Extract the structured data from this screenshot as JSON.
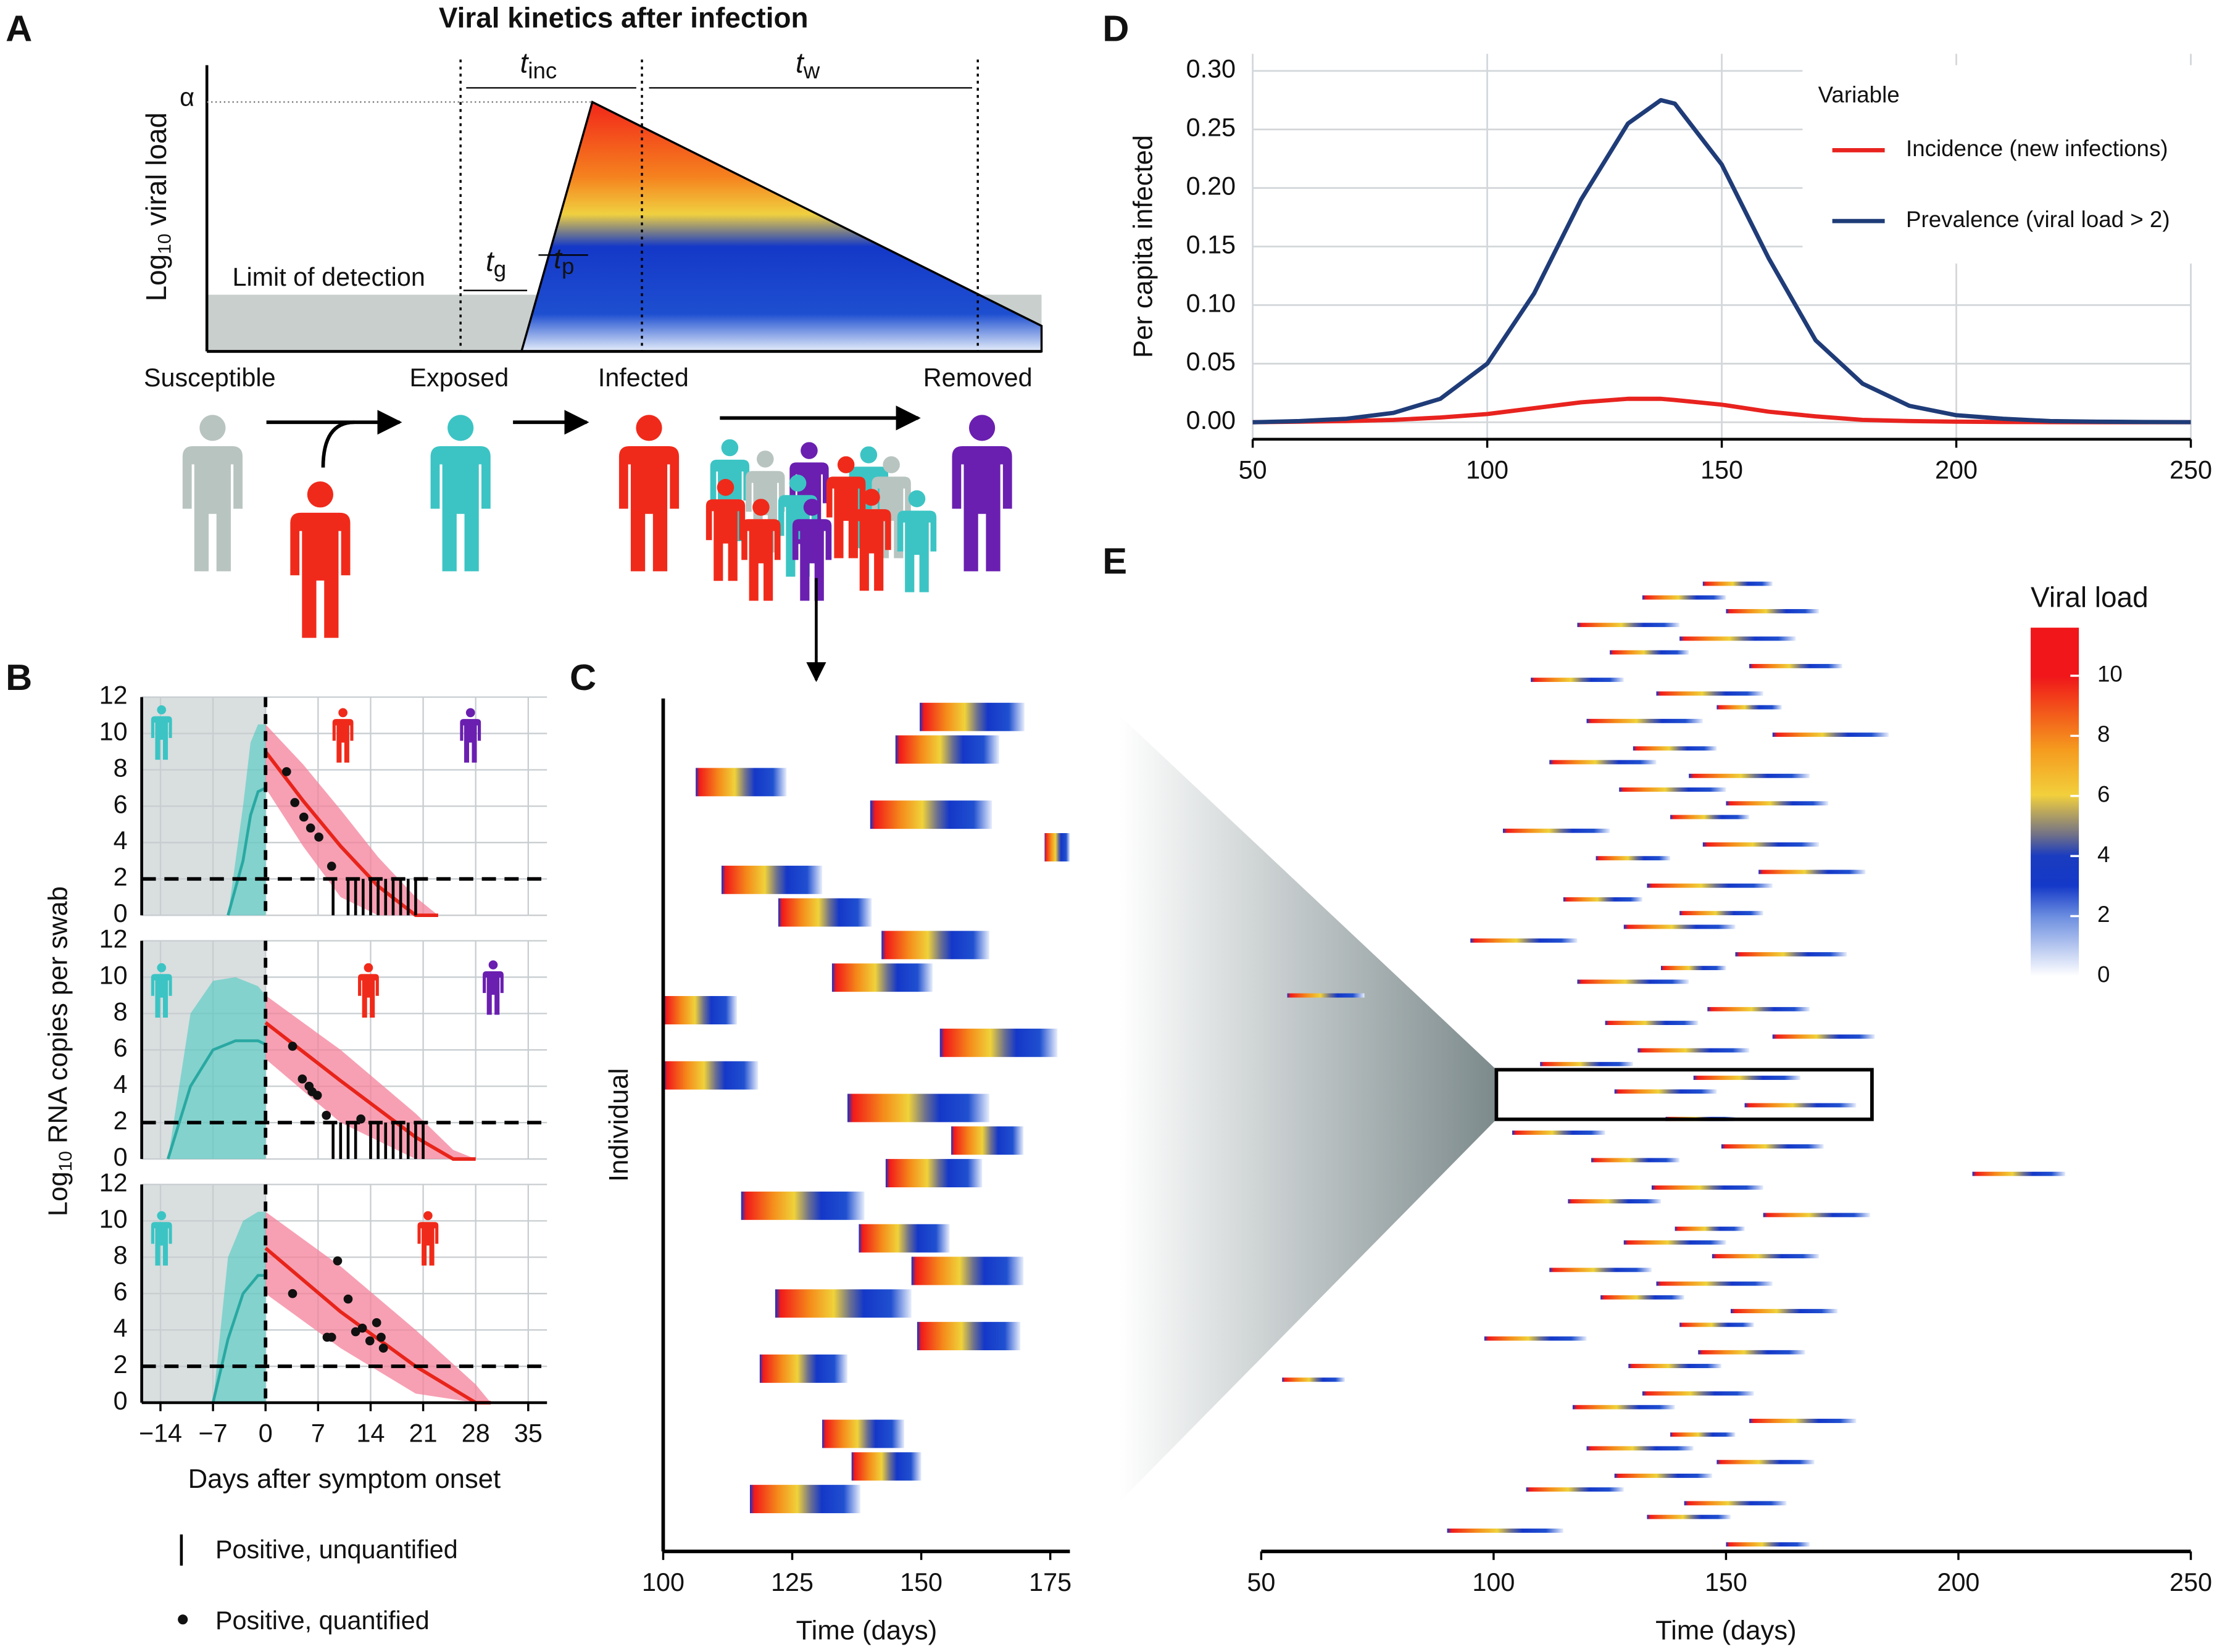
{
  "panel_labels": [
    "A",
    "B",
    "C",
    "D",
    "E"
  ],
  "diagram": {
    "title": "Viral kinetics after infection",
    "ylabel": {
      "main": "Log",
      "sub": "10",
      "rest": " viral load"
    },
    "alpha": "α",
    "lod": "Limit of detection",
    "intervals": [
      {
        "main": "t",
        "sub": "inc"
      },
      {
        "main": "t",
        "sub": "w"
      },
      {
        "main": "t",
        "sub": "g"
      },
      {
        "main": "t",
        "sub": "p"
      }
    ],
    "states": [
      "Susceptible",
      "Exposed",
      "Infected",
      "Removed"
    ]
  },
  "chart_data": [
    {
      "type": "viral_fit",
      "ylabel": {
        "main": "Log",
        "sub": "10",
        "rest": " RNA copies per swab"
      },
      "xlim": [
        -16.5,
        37.5
      ],
      "ylim": [
        0,
        12
      ],
      "yticks": [
        0,
        2,
        4,
        6,
        8,
        10,
        12
      ],
      "xgrid": [
        -14,
        -7,
        0,
        7,
        14,
        21,
        28,
        35
      ],
      "lod": 2,
      "pre": {
        "x": [
          -5,
          -3,
          -2,
          -1,
          0
        ],
        "upper": [
          0,
          6,
          9.5,
          10.5,
          10.5
        ],
        "median": [
          0,
          3,
          5.5,
          6.8,
          7
        ]
      },
      "post": {
        "x": [
          0,
          5,
          10,
          15,
          20,
          23
        ],
        "upper": [
          10.5,
          8.3,
          5.8,
          3.2,
          1,
          0
        ],
        "lower": [
          7,
          3.8,
          1,
          0,
          0,
          0
        ],
        "median": [
          9,
          6.3,
          3.8,
          1.6,
          0,
          0
        ]
      },
      "points": {
        "x": [
          2.8,
          3.9,
          5.1,
          6.0,
          7.1,
          8.8
        ],
        "y": [
          7.9,
          6.2,
          5.4,
          4.8,
          4.3,
          2.7
        ]
      },
      "unquantified": [
        9,
        11,
        12,
        13,
        14,
        15,
        16,
        17,
        18,
        19,
        20
      ]
    },
    {
      "type": "viral_fit",
      "xlim": [
        -16.5,
        37.5
      ],
      "ylim": [
        0,
        12
      ],
      "yticks": [
        0,
        2,
        4,
        6,
        8,
        10,
        12
      ],
      "xgrid": [
        -14,
        -7,
        0,
        7,
        14,
        21,
        28,
        35
      ],
      "lod": 2,
      "pre": {
        "x": [
          -13,
          -10,
          -7,
          -4,
          -1,
          0
        ],
        "upper": [
          0,
          8,
          9.8,
          10,
          9.5,
          9
        ],
        "median": [
          0,
          4,
          6,
          6.5,
          6.5,
          6.3
        ]
      },
      "post": {
        "x": [
          0,
          10,
          20,
          25,
          28
        ],
        "upper": [
          9,
          6,
          2.5,
          0.5,
          0
        ],
        "lower": [
          5.5,
          2,
          0,
          0,
          0
        ],
        "median": [
          7.5,
          4.3,
          1.2,
          0,
          0
        ]
      },
      "points": {
        "x": [
          3.6,
          4.9,
          5.8,
          6.2,
          6.9,
          8.1,
          12.7
        ],
        "y": [
          6.2,
          4.4,
          4.0,
          3.7,
          3.5,
          2.4,
          2.2
        ]
      },
      "unquantified": [
        9,
        10,
        11,
        12,
        14,
        15,
        16,
        17,
        18,
        19,
        20,
        21
      ]
    },
    {
      "type": "viral_fit",
      "xlabel": "Days after symptom onset",
      "legend": [
        "Positive, unquantified",
        "Positive, quantified"
      ],
      "xlim": [
        -16.5,
        37.5
      ],
      "ylim": [
        0,
        12
      ],
      "yticks": [
        0,
        2,
        4,
        6,
        8,
        10,
        12
      ],
      "xticks": [
        {
          "value": -14,
          "label": "−14"
        },
        {
          "value": -7,
          "label": "−7"
        },
        0,
        7,
        14,
        21,
        28,
        35
      ],
      "lod": 2,
      "pre": {
        "x": [
          -7,
          -5,
          -3,
          -1,
          0
        ],
        "upper": [
          0,
          8,
          10,
          10.5,
          10.5
        ],
        "median": [
          0,
          3.5,
          6,
          7,
          7
        ]
      },
      "post": {
        "x": [
          0,
          10,
          20,
          28,
          30
        ],
        "upper": [
          10.5,
          7.5,
          4,
          1,
          0
        ],
        "lower": [
          6,
          3,
          0.5,
          0,
          0
        ],
        "median": [
          8.5,
          5,
          2,
          0,
          0
        ]
      },
      "points": {
        "x": [
          3.6,
          8.2,
          8.8,
          9.6,
          11.0,
          12.0,
          12.9,
          13.9,
          14.8,
          15.4,
          15.7
        ],
        "y": [
          6.0,
          3.6,
          3.6,
          7.8,
          5.7,
          3.9,
          4.1,
          3.4,
          4.4,
          3.6,
          3.0
        ]
      }
    },
    {
      "type": "individual_bars",
      "xlabel": "Time (days)",
      "ylabel": "Individual",
      "xlim": [
        100,
        178.8
      ],
      "xticks": [
        100,
        125,
        150,
        175
      ],
      "start": [
        149.7,
        145,
        106.3,
        140.1,
        173.9,
        111.3,
        122.3,
        142.3,
        132.7,
        100,
        153.6,
        100,
        135.7,
        155.8,
        143.1,
        115.1,
        137.9,
        148.1,
        121.7,
        149.2,
        118.7,
        null,
        130.8,
        136.5,
        116.8
      ],
      "end": [
        170.0,
        165.1,
        123.9,
        163.7,
        178.8,
        130.8,
        140.4,
        163.2,
        152.2,
        114.3,
        176.4,
        118.4,
        163.2,
        169.8,
        161.8,
        139,
        155.5,
        169.8,
        148.1,
        169.2,
        135.7,
        null,
        146.7,
        150,
        138.2
      ]
    },
    {
      "type": "line",
      "ylabel": "Per capita infected",
      "legend_title": "Variable",
      "xlim": [
        50,
        250
      ],
      "ylim": [
        0,
        0.3
      ],
      "xticks": [
        50,
        100,
        150,
        200,
        250
      ],
      "yticks": [
        {
          "value": 0,
          "label": "0.00"
        },
        0.05,
        {
          "value": 0.1,
          "label": "0.10"
        },
        0.15,
        {
          "value": 0.2,
          "label": "0.20"
        },
        0.25,
        {
          "value": 0.3,
          "label": "0.30"
        }
      ],
      "grid": true,
      "x": [
        50,
        60,
        70,
        80,
        90,
        100,
        110,
        120,
        130,
        137,
        140,
        150,
        160,
        170,
        180,
        190,
        200,
        210,
        220,
        230,
        240,
        250
      ],
      "series": [
        {
          "name": "Incidence (new infections)",
          "color": "#e8231f",
          "values": [
            0,
            0.0005,
            0.001,
            0.002,
            0.004,
            0.007,
            0.012,
            0.017,
            0.02,
            0.02,
            0.019,
            0.015,
            0.009,
            0.005,
            0.002,
            0.001,
            0.0005,
            0.0002,
            0.0001,
            0,
            0,
            0
          ]
        },
        {
          "name": "Prevalence (viral load > 2)",
          "color": "#1f3c78",
          "values": [
            0,
            0.001,
            0.003,
            0.008,
            0.02,
            0.05,
            0.11,
            0.19,
            0.255,
            0.275,
            0.272,
            0.22,
            0.14,
            0.07,
            0.033,
            0.014,
            0.006,
            0.003,
            0.001,
            0.0005,
            0.0002,
            0.0001
          ]
        }
      ]
    },
    {
      "type": "individual_bars",
      "xlabel": "Time (days)",
      "xlim": [
        50,
        250
      ],
      "xticks": [
        50,
        100,
        150,
        200,
        250
      ],
      "highlight": [
        100.6,
        181.4
      ],
      "colorbar": {
        "title": "Viral load",
        "lim": [
          0,
          11.6
        ],
        "ticks": [
          0,
          2,
          4,
          6,
          8,
          10
        ]
      },
      "start": [
        145,
        132,
        150,
        118,
        140,
        125,
        155,
        108,
        135,
        148,
        120,
        160,
        130,
        112,
        142,
        127,
        150,
        138,
        102,
        145,
        122,
        157,
        133,
        115,
        140,
        128,
        95,
        152,
        136,
        118,
        55.6,
        146,
        124,
        160,
        131,
        110,
        143,
        126,
        154,
        137,
        104,
        149,
        121,
        203,
        134,
        116,
        158,
        139,
        128,
        147,
        112,
        135,
        123,
        151,
        140,
        98,
        144,
        129,
        54.5,
        132,
        117,
        155,
        138,
        120,
        148,
        126,
        107,
        141,
        133,
        90,
        150
      ],
      "end": [
        160,
        150,
        170,
        140,
        165,
        142,
        175,
        128,
        158,
        162,
        145,
        185,
        148,
        135,
        168,
        150,
        172,
        155,
        125,
        170,
        138,
        180,
        160,
        132,
        158,
        152,
        118,
        176,
        150,
        142,
        72.2,
        168,
        144,
        182,
        155,
        130,
        166,
        148,
        178,
        152,
        124,
        171,
        140,
        223,
        158,
        136,
        181,
        154,
        150,
        170,
        134,
        160,
        141,
        174,
        156,
        120,
        167,
        149,
        68,
        156,
        139,
        178,
        152,
        143,
        169,
        147,
        128,
        163,
        151,
        115,
        168
      ]
    }
  ]
}
